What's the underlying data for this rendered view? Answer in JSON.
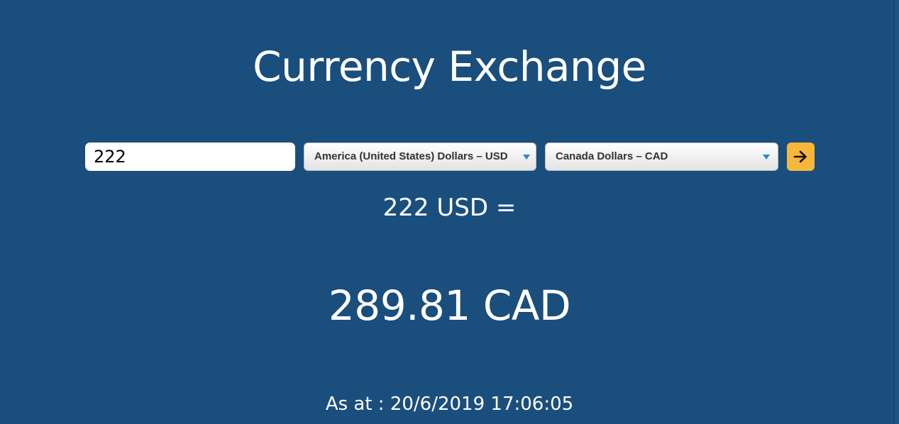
{
  "page": {
    "title": "Currency Exchange"
  },
  "converter": {
    "amount_value": "222",
    "from_currency": "America (United States) Dollars – USD",
    "to_currency": "Canada Dollars – CAD",
    "convert_icon": "arrow-right-icon"
  },
  "result": {
    "from_text": "222 USD =",
    "to_text": "289.81 CAD",
    "timestamp": "As at : 20/6/2019 17:06:05"
  },
  "colors": {
    "background": "#1a4e7d",
    "accent": "#f7b73a",
    "caret": "#1b8fc9",
    "text": "#ffffff"
  }
}
